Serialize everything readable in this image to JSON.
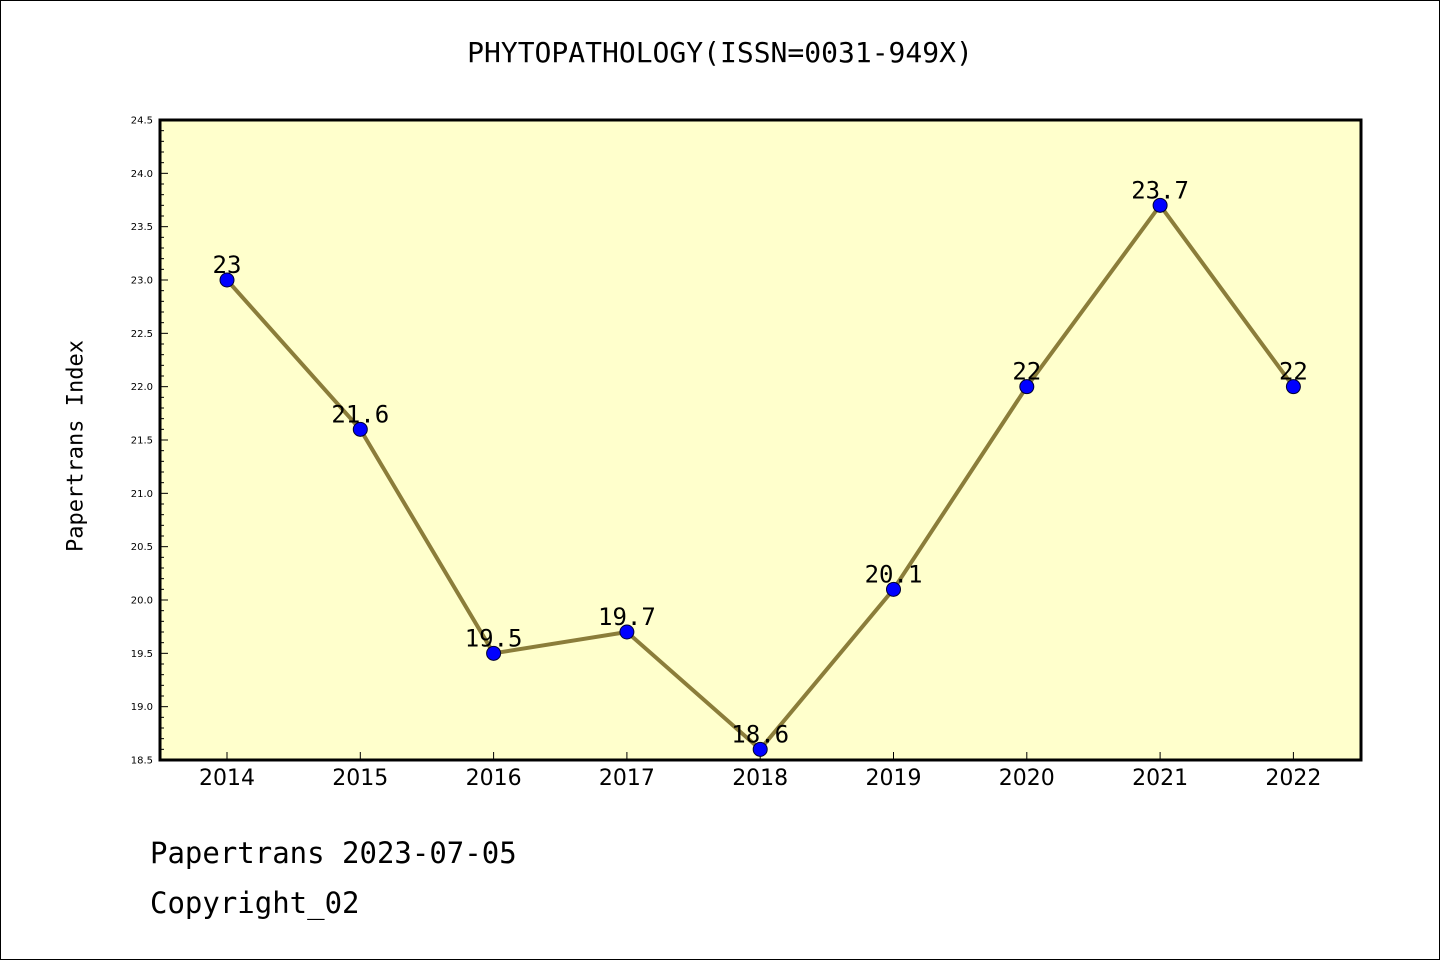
{
  "chart_data": {
    "type": "line",
    "title": "PHYTOPATHOLOGY(ISSN=0031-949X)",
    "xlabel": "",
    "ylabel": "Papertrans Index",
    "categories": [
      "2014",
      "2015",
      "2016",
      "2017",
      "2018",
      "2019",
      "2020",
      "2021",
      "2022"
    ],
    "series": [
      {
        "values": [
          23,
          21.6,
          19.5,
          19.7,
          18.6,
          20.1,
          22,
          23.7,
          22
        ]
      }
    ],
    "data_labels": [
      "23",
      "21.6",
      "19.5",
      "19.7",
      "18.6",
      "20.1",
      "22",
      "23.7",
      "22"
    ],
    "ylim": [
      18.5,
      24.5
    ],
    "yticks": [
      "18.5",
      "19.0",
      "19.5",
      "20.0",
      "20.5",
      "21.0",
      "21.5",
      "22.0",
      "22.5",
      "23.0",
      "23.5",
      "24.0",
      "24.5"
    ],
    "grid": false,
    "legend": "none",
    "colors": {
      "plot_background": "#ffffcc",
      "line": "#8b7d3a",
      "marker": "#0000ff"
    }
  },
  "footer": {
    "line1": "Papertrans 2023-07-05",
    "line2": "Copyright_02"
  }
}
